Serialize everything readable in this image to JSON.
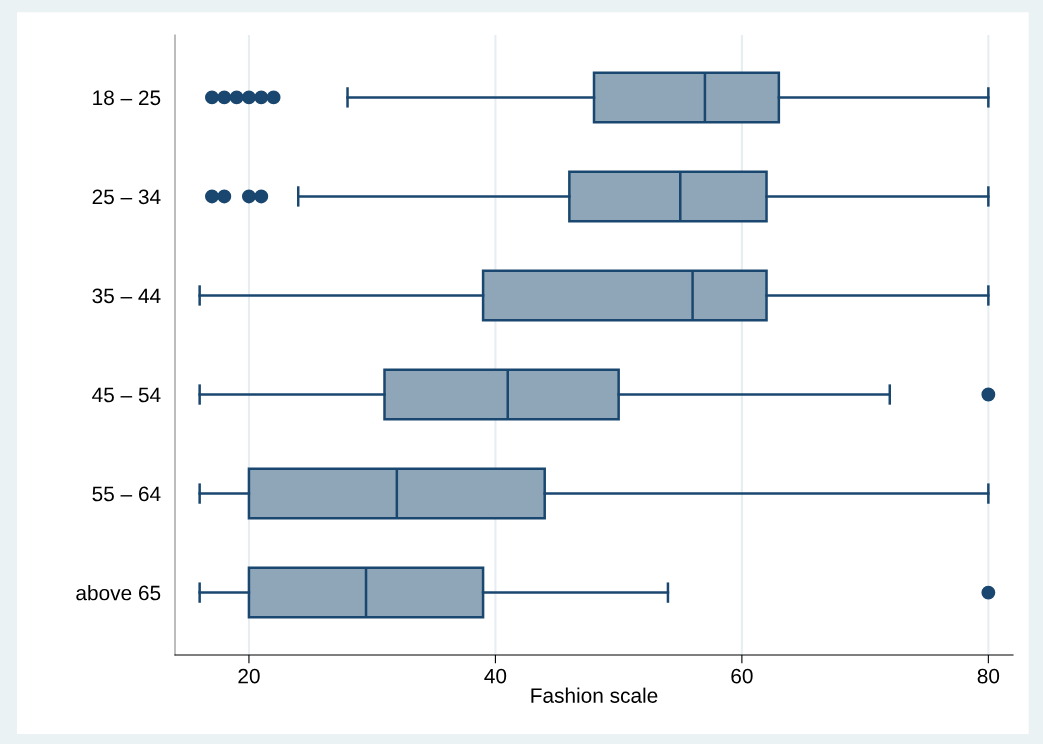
{
  "chart_data": {
    "type": "box",
    "orientation": "horizontal",
    "xlabel": "Fashion scale",
    "categories": [
      "18 – 25",
      "25 – 34",
      "35 – 44",
      "45 – 54",
      "55 – 64",
      "above 65"
    ],
    "series": [
      {
        "color": "#8fa5b8",
        "boxes": [
          {
            "low": 28,
            "q1": 48,
            "median": 57,
            "q3": 63,
            "high": 80,
            "outliers": [
              17,
              18,
              19,
              20,
              21,
              22
            ]
          },
          {
            "low": 24,
            "q1": 46,
            "median": 55,
            "q3": 62,
            "high": 80,
            "outliers": [
              17,
              18,
              20,
              21
            ]
          },
          {
            "low": 16,
            "q1": 39,
            "median": 56,
            "q3": 62,
            "high": 80
          },
          {
            "low": 16,
            "q1": 31,
            "median": 41,
            "q3": 50,
            "high": 72,
            "outliers": [
              80
            ]
          },
          {
            "low": 16,
            "q1": 20,
            "median": 32,
            "q3": 44,
            "high": 80
          },
          {
            "low": 16,
            "q1": 20,
            "median": 29.5,
            "q3": 39,
            "high": 54,
            "outliers": [
              80
            ]
          }
        ]
      }
    ],
    "xlim": [
      14,
      82
    ],
    "xticks": [
      20,
      40,
      60,
      80
    ],
    "grid": "x",
    "legend": false
  }
}
